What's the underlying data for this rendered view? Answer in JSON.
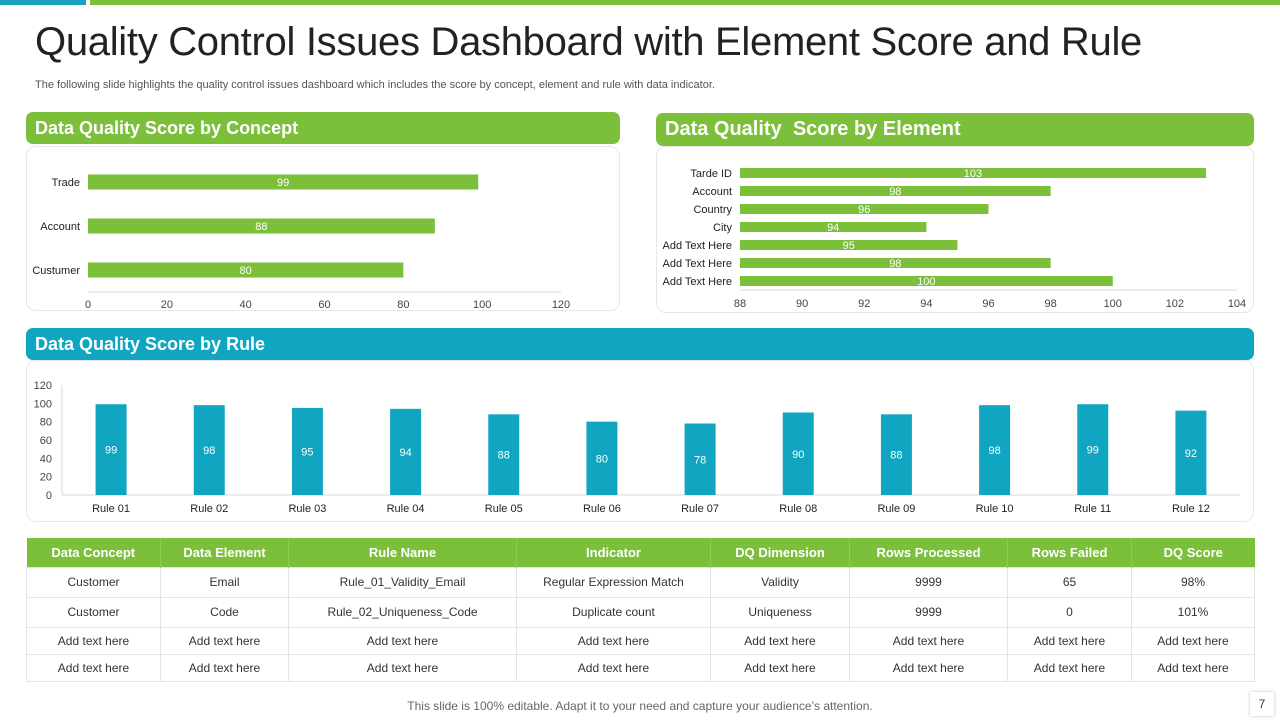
{
  "header": {
    "title": "Quality Control Issues Dashboard with Element Score and Rule",
    "subtitle": "The following slide highlights the quality control issues dashboard which includes the score by concept, element and rule with data indicator."
  },
  "colors": {
    "green": "#7bbf3a",
    "teal": "#10a5c0",
    "blue_accent": "#1ba0c0"
  },
  "panels": {
    "concept_title": "Data Quality Score by Concept",
    "element_title": "Data Quality  Score by Element",
    "rule_title": "Data Quality Score by Rule"
  },
  "chart_data": [
    {
      "id": "concept",
      "type": "bar",
      "orientation": "horizontal",
      "title": "Data Quality Score by Concept",
      "categories": [
        "Trade",
        "Account",
        "Custumer"
      ],
      "values": [
        99,
        88,
        80
      ],
      "xlim": [
        0,
        120
      ],
      "xticks": [
        0,
        20,
        40,
        60,
        80,
        100,
        120
      ],
      "color": "#7bbf3a"
    },
    {
      "id": "element",
      "type": "bar",
      "orientation": "horizontal",
      "title": "Data Quality  Score by Element",
      "categories": [
        "Tarde ID",
        "Account",
        "Country",
        "City",
        "Add Text Here",
        "Add Text Here",
        "Add Text Here"
      ],
      "values": [
        103,
        98,
        96,
        94,
        95,
        98,
        100
      ],
      "xlim": [
        88,
        104
      ],
      "xticks": [
        88,
        90,
        92,
        94,
        96,
        98,
        100,
        102,
        104
      ],
      "color": "#7bbf3a"
    },
    {
      "id": "rule",
      "type": "bar",
      "orientation": "vertical",
      "title": "Data Quality Score by Rule",
      "categories": [
        "Rule 01",
        "Rule 02",
        "Rule 03",
        "Rule 04",
        "Rule 05",
        "Rule 06",
        "Rule 07",
        "Rule 08",
        "Rule 09",
        "Rule 10",
        "Rule 11",
        "Rule 12"
      ],
      "values": [
        99,
        98,
        95,
        94,
        88,
        80,
        78,
        90,
        88,
        98,
        99,
        92
      ],
      "ylim": [
        0,
        120
      ],
      "yticks": [
        0,
        20,
        40,
        60,
        80,
        100,
        120
      ],
      "color": "#10a5c0"
    }
  ],
  "table": {
    "headers": [
      "Data Concept",
      "Data Element",
      "Rule Name",
      "Indicator",
      "DQ Dimension",
      "Rows Processed",
      "Rows Failed",
      "DQ Score"
    ],
    "rows": [
      [
        "Customer",
        "Email",
        "Rule_01_Validity_Email",
        "Regular Expression Match",
        "Validity",
        "9999",
        "65",
        "98%"
      ],
      [
        "Customer",
        "Code",
        "Rule_02_Uniqueness_Code",
        "Duplicate count",
        "Uniqueness",
        "9999",
        "0",
        "101%"
      ],
      [
        "Add text here",
        "Add text here",
        "Add text here",
        "Add text here",
        "Add text here",
        "Add text here",
        "Add text here",
        "Add text here"
      ],
      [
        "Add text here",
        "Add text here",
        "Add text here",
        "Add text here",
        "Add text here",
        "Add text here",
        "Add text here",
        "Add text here"
      ]
    ]
  },
  "footer": {
    "note": "This slide is 100% editable. Adapt it to your need and capture your audience’s attention.",
    "page_number": "7"
  }
}
